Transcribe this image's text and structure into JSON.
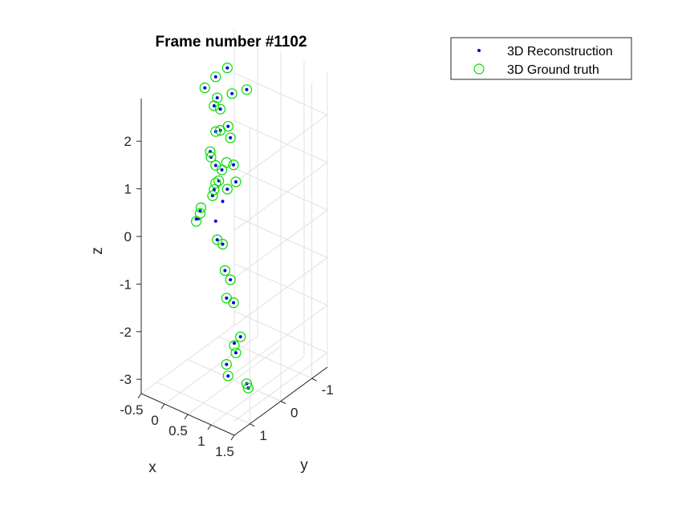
{
  "chart_data": {
    "type": "scatter",
    "title": "Frame number #1102",
    "xlabel": "x",
    "ylabel": "y",
    "zlabel": "z",
    "grid": true,
    "legend_position": "top-right",
    "x_ticks": [
      "-0.5",
      "0",
      "0.5",
      "1",
      "1.5"
    ],
    "y_ticks": [
      "1",
      "0",
      "-1"
    ],
    "z_ticks": [
      "2",
      "1",
      "0",
      "-1",
      "-2",
      "-3"
    ],
    "series": [
      {
        "name": "3D Reconstruction",
        "marker": "dot",
        "color": "#0000cc",
        "points": [
          {
            "x": 0.2,
            "y": 0.1,
            "z": 2.55
          },
          {
            "x": 0.1,
            "y": 0.0,
            "z": 2.9
          },
          {
            "x": 0.45,
            "y": 0.0,
            "z": 2.7
          },
          {
            "x": 0.2,
            "y": 0.5,
            "z": 2.95
          },
          {
            "x": 0.05,
            "y": -0.45,
            "z": 2.85
          },
          {
            "x": 0.4,
            "y": -0.55,
            "z": 2.5
          },
          {
            "x": 0.0,
            "y": -0.1,
            "z": 2.2
          },
          {
            "x": 0.1,
            "y": -0.15,
            "z": 2.15
          },
          {
            "x": 0.4,
            "y": 0.3,
            "z": 2.05
          },
          {
            "x": 0.3,
            "y": -0.1,
            "z": 1.9
          },
          {
            "x": 0.1,
            "y": 0.0,
            "z": 1.75
          },
          {
            "x": 0.35,
            "y": 0.55,
            "z": 1.7
          },
          {
            "x": 0.15,
            "y": -0.4,
            "z": 1.45
          },
          {
            "x": 0.2,
            "y": 0.3,
            "z": 1.4
          },
          {
            "x": 0.5,
            "y": 0.6,
            "z": 1.5
          },
          {
            "x": 0.3,
            "y": 0.2,
            "z": 0.9
          },
          {
            "x": 0.1,
            "y": -0.2,
            "z": 0.85
          },
          {
            "x": 0.25,
            "y": -0.35,
            "z": 0.95
          },
          {
            "x": 0.35,
            "y": 0.0,
            "z": 0.65
          },
          {
            "x": 0.2,
            "y": -0.5,
            "z": 0.5
          },
          {
            "x": 0.1,
            "y": 0.1,
            "z": 0.45
          },
          {
            "x": 0.25,
            "y": 0.0,
            "z": 0.35
          },
          {
            "x": 0.3,
            "y": 0.3,
            "z": 0.1
          },
          {
            "x": 0.2,
            "y": 0.7,
            "z": 0.3
          },
          {
            "x": 0.3,
            "y": 0.8,
            "z": 0.55
          },
          {
            "x": 0.35,
            "y": 1.0,
            "z": 0.5
          },
          {
            "x": 0.4,
            "y": 0.5,
            "z": 0.9
          },
          {
            "x": 0.25,
            "y": 0.0,
            "z": -0.55
          },
          {
            "x": 0.4,
            "y": 0.4,
            "z": -0.2
          },
          {
            "x": 0.35,
            "y": -0.1,
            "z": -1.3
          },
          {
            "x": 0.5,
            "y": 0.3,
            "z": -0.85
          },
          {
            "x": 0.2,
            "y": -0.2,
            "z": -1.8
          },
          {
            "x": 0.55,
            "y": 0.1,
            "z": -1.6
          },
          {
            "x": 0.7,
            "y": 0.1,
            "z": -2.25
          },
          {
            "x": 0.8,
            "y": 0.4,
            "z": -2.4
          },
          {
            "x": 0.3,
            "y": -0.3,
            "z": -2.75
          },
          {
            "x": 0.8,
            "y": 0.7,
            "z": -2.5
          },
          {
            "x": 0.9,
            "y": 0.8,
            "z": -2.65
          },
          {
            "x": 0.9,
            "y": 0.2,
            "z": -3.1
          },
          {
            "x": 1.0,
            "y": 0.3,
            "z": -3.1
          }
        ]
      },
      {
        "name": "3D Ground truth",
        "marker": "circle",
        "color": "#00dd00",
        "points": [
          {
            "x": 0.2,
            "y": 0.1,
            "z": 2.55
          },
          {
            "x": 0.1,
            "y": 0.0,
            "z": 2.9
          },
          {
            "x": 0.45,
            "y": 0.0,
            "z": 2.7
          },
          {
            "x": 0.2,
            "y": 0.5,
            "z": 2.95
          },
          {
            "x": 0.05,
            "y": -0.45,
            "z": 2.85
          },
          {
            "x": 0.4,
            "y": -0.55,
            "z": 2.5
          },
          {
            "x": 0.0,
            "y": -0.1,
            "z": 2.2
          },
          {
            "x": 0.1,
            "y": -0.15,
            "z": 2.15
          },
          {
            "x": 0.4,
            "y": 0.3,
            "z": 2.05
          },
          {
            "x": 0.3,
            "y": -0.1,
            "z": 1.9
          },
          {
            "x": 0.1,
            "y": 0.0,
            "z": 1.75
          },
          {
            "x": 0.35,
            "y": 0.55,
            "z": 1.7
          },
          {
            "x": 0.15,
            "y": -0.4,
            "z": 1.45
          },
          {
            "x": 0.2,
            "y": 0.3,
            "z": 1.4
          },
          {
            "x": 0.5,
            "y": 0.6,
            "z": 1.5
          },
          {
            "x": 0.3,
            "y": 0.2,
            "z": 0.9
          },
          {
            "x": 0.1,
            "y": -0.2,
            "z": 0.85
          },
          {
            "x": 0.25,
            "y": -0.35,
            "z": 0.95
          },
          {
            "x": 0.35,
            "y": 0.0,
            "z": 0.65
          },
          {
            "x": 0.2,
            "y": -0.5,
            "z": 0.5
          },
          {
            "x": 0.1,
            "y": 0.1,
            "z": 0.45
          },
          {
            "x": 0.3,
            "y": 0.3,
            "z": 0.9
          },
          {
            "x": 0.25,
            "y": 0.7,
            "z": 0.55
          },
          {
            "x": 0.3,
            "y": 0.8,
            "z": 0.5
          },
          {
            "x": 0.35,
            "y": 1.0,
            "z": 0.45
          },
          {
            "x": 0.4,
            "y": 0.5,
            "z": 0.9
          },
          {
            "x": 0.2,
            "y": -0.2,
            "z": 1.05
          },
          {
            "x": 0.25,
            "y": 0.0,
            "z": -0.55
          },
          {
            "x": 0.4,
            "y": 0.4,
            "z": -0.2
          },
          {
            "x": 0.35,
            "y": -0.1,
            "z": -1.3
          },
          {
            "x": 0.5,
            "y": 0.3,
            "z": -0.85
          },
          {
            "x": 0.2,
            "y": -0.2,
            "z": -1.8
          },
          {
            "x": 0.55,
            "y": 0.1,
            "z": -1.6
          },
          {
            "x": 0.7,
            "y": 0.1,
            "z": -2.25
          },
          {
            "x": 0.8,
            "y": 0.4,
            "z": -2.4
          },
          {
            "x": 0.3,
            "y": -0.3,
            "z": -2.8
          },
          {
            "x": 0.8,
            "y": 0.7,
            "z": -2.5
          },
          {
            "x": 0.9,
            "y": 0.8,
            "z": -2.65
          },
          {
            "x": 0.9,
            "y": 0.2,
            "z": -3.1
          },
          {
            "x": 1.0,
            "y": 0.3,
            "z": -3.1
          }
        ]
      }
    ]
  }
}
